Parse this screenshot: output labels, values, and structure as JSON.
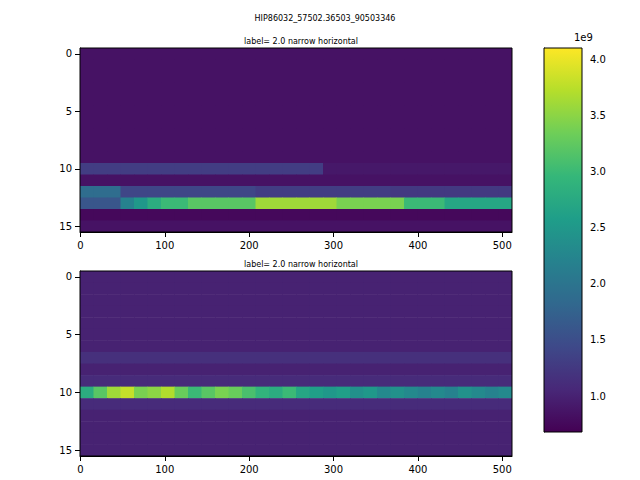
{
  "suptitle": "HIP86032_57502.36503_90503346",
  "colorbar": {
    "range": [
      0.68,
      4.1
    ],
    "ticks": [
      {
        "value": 1,
        "label": "1.0"
      },
      {
        "value": 1.5,
        "label": "1.5"
      },
      {
        "value": 2,
        "label": "2.0"
      },
      {
        "value": 2.5,
        "label": "2.5"
      },
      {
        "value": 3,
        "label": "3.0"
      },
      {
        "value": 3.5,
        "label": "3.5"
      },
      {
        "value": 4,
        "label": "4.0"
      }
    ],
    "offset_text": "1e9"
  },
  "chart_data": [
    {
      "type": "heatmap",
      "title": "label= 2.0 narrow horizontal",
      "xlim": [
        -0.5,
        511.5
      ],
      "xticks": [
        0,
        100,
        200,
        300,
        400,
        500
      ],
      "ylim": [
        15.5,
        -0.5
      ],
      "yticks": [
        0,
        5,
        10,
        15
      ],
      "x_bins": [
        -0.5,
        15.5,
        31.5,
        47.5,
        63.5,
        79.5,
        95.5,
        111.5,
        127.5,
        143.5,
        159.5,
        175.5,
        191.5,
        207.5,
        223.5,
        239.5,
        255.5,
        271.5,
        287.5,
        303.5,
        319.5,
        335.5,
        351.5,
        367.5,
        383.5,
        399.5,
        415.5,
        431.5,
        447.5,
        463.5,
        479.5,
        495.5,
        511.5
      ],
      "cells": [
        [
          0.85,
          0.85,
          0.85,
          0.85,
          0.85,
          0.85,
          0.85,
          0.85,
          0.85,
          0.85,
          0.85,
          0.85,
          0.85,
          0.85,
          0.85,
          0.85,
          0.85,
          0.85,
          0.85,
          0.85,
          0.85,
          0.85,
          0.85,
          0.85,
          0.85,
          0.85,
          0.85,
          0.85,
          0.85,
          0.85,
          0.85,
          0.85
        ],
        [
          0.85,
          0.85,
          0.85,
          0.85,
          0.85,
          0.85,
          0.85,
          0.85,
          0.85,
          0.85,
          0.85,
          0.85,
          0.85,
          0.85,
          0.85,
          0.85,
          0.85,
          0.85,
          0.85,
          0.85,
          0.85,
          0.85,
          0.85,
          0.85,
          0.85,
          0.85,
          0.85,
          0.85,
          0.85,
          0.85,
          0.85,
          0.85
        ],
        [
          0.85,
          0.85,
          0.85,
          0.85,
          0.85,
          0.85,
          0.85,
          0.85,
          0.85,
          0.85,
          0.85,
          0.85,
          0.85,
          0.85,
          0.85,
          0.85,
          0.85,
          0.85,
          0.85,
          0.85,
          0.85,
          0.85,
          0.85,
          0.85,
          0.85,
          0.85,
          0.85,
          0.85,
          0.85,
          0.85,
          0.85,
          0.85
        ],
        [
          0.85,
          0.85,
          0.85,
          0.85,
          0.85,
          0.85,
          0.85,
          0.85,
          0.85,
          0.85,
          0.85,
          0.85,
          0.85,
          0.85,
          0.85,
          0.85,
          0.85,
          0.85,
          0.85,
          0.85,
          0.85,
          0.85,
          0.85,
          0.85,
          0.85,
          0.85,
          0.85,
          0.85,
          0.85,
          0.85,
          0.85,
          0.85
        ],
        [
          0.85,
          0.85,
          0.85,
          0.85,
          0.85,
          0.85,
          0.85,
          0.85,
          0.85,
          0.85,
          0.85,
          0.85,
          0.85,
          0.85,
          0.85,
          0.85,
          0.85,
          0.85,
          0.85,
          0.85,
          0.85,
          0.85,
          0.85,
          0.85,
          0.85,
          0.85,
          0.85,
          0.85,
          0.85,
          0.85,
          0.85,
          0.85
        ],
        [
          0.85,
          0.85,
          0.85,
          0.85,
          0.85,
          0.85,
          0.85,
          0.85,
          0.85,
          0.85,
          0.85,
          0.85,
          0.85,
          0.85,
          0.85,
          0.85,
          0.85,
          0.85,
          0.85,
          0.85,
          0.85,
          0.85,
          0.85,
          0.85,
          0.85,
          0.85,
          0.85,
          0.85,
          0.85,
          0.85,
          0.85,
          0.85
        ],
        [
          0.85,
          0.85,
          0.85,
          0.85,
          0.85,
          0.85,
          0.85,
          0.85,
          0.85,
          0.85,
          0.85,
          0.85,
          0.85,
          0.85,
          0.85,
          0.85,
          0.85,
          0.85,
          0.85,
          0.85,
          0.85,
          0.85,
          0.85,
          0.85,
          0.85,
          0.85,
          0.85,
          0.85,
          0.85,
          0.85,
          0.85,
          0.85
        ],
        [
          0.85,
          0.85,
          0.85,
          0.85,
          0.85,
          0.85,
          0.85,
          0.85,
          0.85,
          0.85,
          0.85,
          0.85,
          0.85,
          0.85,
          0.85,
          0.85,
          0.85,
          0.85,
          0.85,
          0.85,
          0.85,
          0.85,
          0.85,
          0.85,
          0.85,
          0.85,
          0.85,
          0.85,
          0.85,
          0.85,
          0.85,
          0.85
        ],
        [
          0.85,
          0.85,
          0.85,
          0.85,
          0.85,
          0.85,
          0.85,
          0.85,
          0.85,
          0.85,
          0.85,
          0.85,
          0.85,
          0.85,
          0.85,
          0.85,
          0.85,
          0.85,
          0.85,
          0.85,
          0.85,
          0.85,
          0.85,
          0.85,
          0.85,
          0.85,
          0.85,
          0.85,
          0.85,
          0.85,
          0.85,
          0.85
        ],
        [
          0.85,
          0.85,
          0.85,
          0.85,
          0.85,
          0.85,
          0.85,
          0.85,
          0.85,
          0.85,
          0.85,
          0.85,
          0.85,
          0.85,
          0.85,
          0.85,
          0.85,
          0.85,
          0.85,
          0.85,
          0.85,
          0.85,
          0.85,
          0.85,
          0.85,
          0.85,
          0.85,
          0.85,
          0.85,
          0.85,
          0.85,
          0.85
        ],
        [
          1.3,
          1.3,
          1.3,
          1.3,
          1.3,
          1.3,
          1.3,
          1.3,
          1.3,
          1.3,
          1.3,
          1.3,
          1.3,
          1.3,
          1.3,
          1.3,
          1.3,
          1.3,
          0.9,
          0.9,
          0.9,
          0.9,
          0.9,
          0.9,
          0.9,
          0.9,
          0.9,
          0.9,
          0.9,
          0.9,
          0.9,
          0.9
        ],
        [
          0.85,
          0.85,
          0.85,
          0.85,
          0.85,
          0.85,
          0.85,
          0.85,
          0.85,
          0.85,
          0.85,
          0.85,
          0.85,
          0.85,
          0.85,
          0.85,
          0.85,
          0.85,
          0.85,
          0.85,
          0.85,
          0.85,
          0.85,
          0.85,
          0.85,
          0.85,
          0.85,
          0.85,
          0.85,
          0.85,
          0.85,
          0.85
        ],
        [
          1.9,
          1.9,
          1.9,
          1.4,
          1.4,
          1.4,
          1.4,
          1.4,
          1.4,
          1.4,
          1.4,
          1.4,
          1.4,
          1.3,
          1.3,
          1.3,
          1.3,
          1.3,
          1.3,
          1.3,
          1.3,
          1.3,
          1.3,
          1.25,
          1.25,
          1.25,
          1.25,
          1.25,
          1.25,
          1.25,
          1.25,
          1.25
        ],
        [
          1.6,
          1.6,
          1.6,
          2.2,
          2.5,
          2.8,
          3.0,
          3.0,
          3.2,
          3.2,
          3.2,
          3.2,
          3.2,
          3.6,
          3.6,
          3.6,
          3.6,
          3.6,
          3.6,
          3.4,
          3.4,
          3.4,
          3.4,
          3.4,
          3.0,
          3.0,
          3.0,
          2.7,
          2.7,
          2.7,
          2.7,
          2.7
        ],
        [
          0.75,
          0.75,
          0.75,
          0.75,
          0.75,
          0.75,
          0.75,
          0.75,
          0.75,
          0.75,
          0.75,
          0.75,
          0.75,
          0.75,
          0.75,
          0.75,
          0.75,
          0.75,
          0.75,
          0.75,
          0.75,
          0.75,
          0.75,
          0.75,
          0.75,
          0.75,
          0.75,
          0.75,
          0.75,
          0.75,
          0.75,
          0.75
        ],
        [
          0.85,
          0.85,
          0.85,
          0.85,
          0.85,
          0.85,
          0.85,
          0.85,
          0.85,
          0.85,
          0.85,
          0.85,
          0.85,
          0.85,
          0.85,
          0.85,
          0.85,
          0.85,
          0.85,
          0.85,
          0.85,
          0.85,
          0.85,
          0.85,
          0.85,
          0.85,
          0.85,
          0.85,
          0.85,
          0.85,
          0.85,
          0.85
        ]
      ]
    },
    {
      "type": "heatmap",
      "title": "label= 2.0 narrow horizontal",
      "xlim": [
        -0.5,
        511.5
      ],
      "xticks": [
        0,
        100,
        200,
        300,
        400,
        500
      ],
      "ylim": [
        15.5,
        -0.5
      ],
      "yticks": [
        0,
        5,
        10,
        15
      ],
      "x_bins": [
        -0.5,
        15.5,
        31.5,
        47.5,
        63.5,
        79.5,
        95.5,
        111.5,
        127.5,
        143.5,
        159.5,
        175.5,
        191.5,
        207.5,
        223.5,
        239.5,
        255.5,
        271.5,
        287.5,
        303.5,
        319.5,
        335.5,
        351.5,
        367.5,
        383.5,
        399.5,
        415.5,
        431.5,
        447.5,
        463.5,
        479.5,
        495.5,
        511.5
      ],
      "cells": [
        [
          1.0,
          1.0,
          1.0,
          1.0,
          1.0,
          1.0,
          1.0,
          1.0,
          1.0,
          1.0,
          1.0,
          1.0,
          1.0,
          1.0,
          1.0,
          1.0,
          1.0,
          1.0,
          1.0,
          1.0,
          1.0,
          1.0,
          1.0,
          1.0,
          1.0,
          1.0,
          1.0,
          1.0,
          1.0,
          1.0,
          1.0,
          1.0
        ],
        [
          1.0,
          1.0,
          1.0,
          1.0,
          1.0,
          1.0,
          1.0,
          1.0,
          1.0,
          1.0,
          1.0,
          1.0,
          1.0,
          1.0,
          1.0,
          1.0,
          1.0,
          1.0,
          1.0,
          1.0,
          1.0,
          1.0,
          1.0,
          1.0,
          1.0,
          1.0,
          1.0,
          1.0,
          1.0,
          1.0,
          1.0,
          1.0
        ],
        [
          1.0,
          1.0,
          1.0,
          1.0,
          1.0,
          1.0,
          1.0,
          1.0,
          1.0,
          1.0,
          1.0,
          1.0,
          1.0,
          1.0,
          1.0,
          1.0,
          1.0,
          1.0,
          1.0,
          1.0,
          1.0,
          1.0,
          1.0,
          1.0,
          1.0,
          1.0,
          1.0,
          1.0,
          1.0,
          1.0,
          1.0,
          1.0
        ],
        [
          1.0,
          1.0,
          1.0,
          1.0,
          1.0,
          1.0,
          1.0,
          1.0,
          1.0,
          1.0,
          1.0,
          1.0,
          1.0,
          1.0,
          1.0,
          1.0,
          1.0,
          1.0,
          1.0,
          1.0,
          1.0,
          1.0,
          1.0,
          1.0,
          1.0,
          1.0,
          1.0,
          1.0,
          1.0,
          1.0,
          1.0,
          1.0
        ],
        [
          1.0,
          1.0,
          1.0,
          1.0,
          1.0,
          1.0,
          1.0,
          1.0,
          1.0,
          1.0,
          1.0,
          1.0,
          1.0,
          1.0,
          1.0,
          1.0,
          1.0,
          1.0,
          1.0,
          1.0,
          1.0,
          1.0,
          1.0,
          1.0,
          1.0,
          1.0,
          1.0,
          1.0,
          1.0,
          1.0,
          1.0,
          1.0
        ],
        [
          1.0,
          1.0,
          1.0,
          1.0,
          1.0,
          1.0,
          1.0,
          1.0,
          1.0,
          1.0,
          1.0,
          1.0,
          1.0,
          1.0,
          1.0,
          1.0,
          1.0,
          1.0,
          1.0,
          1.0,
          1.0,
          1.0,
          1.0,
          1.0,
          1.0,
          1.0,
          1.0,
          1.0,
          1.0,
          1.0,
          1.0,
          1.0
        ],
        [
          1.0,
          1.0,
          1.0,
          1.0,
          1.0,
          1.0,
          1.0,
          1.0,
          1.0,
          1.0,
          1.0,
          1.0,
          1.0,
          1.0,
          1.0,
          1.0,
          1.0,
          1.0,
          1.0,
          1.0,
          1.0,
          1.0,
          1.0,
          1.0,
          1.0,
          1.0,
          1.0,
          1.0,
          1.0,
          1.0,
          1.0,
          1.0
        ],
        [
          1.15,
          1.15,
          1.15,
          1.15,
          1.15,
          1.15,
          1.15,
          1.15,
          1.15,
          1.15,
          1.15,
          1.15,
          1.15,
          1.15,
          1.15,
          1.15,
          1.15,
          1.15,
          1.15,
          1.15,
          1.15,
          1.15,
          1.15,
          1.15,
          1.15,
          1.15,
          1.15,
          1.15,
          1.15,
          1.15,
          1.15,
          1.15
        ],
        [
          1.0,
          1.0,
          1.0,
          1.0,
          1.0,
          1.0,
          1.0,
          1.0,
          1.0,
          1.0,
          1.0,
          1.0,
          1.0,
          1.0,
          1.0,
          1.0,
          1.0,
          1.0,
          1.0,
          1.0,
          1.0,
          1.0,
          1.0,
          1.0,
          1.0,
          1.0,
          1.0,
          1.0,
          1.0,
          1.0,
          1.0,
          1.0
        ],
        [
          1.1,
          1.1,
          1.1,
          1.1,
          1.1,
          1.1,
          1.1,
          1.1,
          1.1,
          1.1,
          1.1,
          1.1,
          1.1,
          1.1,
          1.1,
          1.1,
          1.1,
          1.1,
          1.1,
          1.1,
          1.1,
          1.1,
          1.1,
          1.1,
          1.1,
          1.1,
          1.1,
          1.1,
          1.1,
          1.1,
          1.1,
          1.1
        ],
        [
          2.8,
          3.2,
          3.6,
          3.8,
          3.4,
          3.5,
          3.7,
          3.3,
          3.0,
          3.2,
          3.4,
          3.3,
          3.1,
          2.9,
          2.8,
          3.0,
          2.7,
          2.6,
          2.5,
          2.6,
          2.4,
          2.5,
          2.3,
          2.4,
          2.3,
          2.2,
          2.3,
          2.2,
          2.4,
          2.3,
          2.2,
          2.3
        ],
        [
          1.1,
          1.1,
          1.1,
          1.1,
          1.1,
          1.1,
          1.1,
          1.1,
          1.1,
          1.1,
          1.1,
          1.1,
          1.1,
          1.1,
          1.1,
          1.1,
          1.1,
          1.1,
          1.1,
          1.1,
          1.1,
          1.1,
          1.1,
          1.1,
          1.1,
          1.1,
          1.1,
          1.1,
          1.1,
          1.1,
          1.1,
          1.1
        ],
        [
          1.0,
          1.0,
          1.0,
          1.0,
          1.0,
          1.0,
          1.0,
          1.0,
          1.0,
          1.0,
          1.0,
          1.0,
          1.0,
          1.0,
          1.0,
          1.0,
          1.0,
          1.0,
          1.0,
          1.0,
          1.0,
          1.0,
          1.0,
          1.0,
          1.0,
          1.0,
          1.0,
          1.0,
          1.0,
          1.0,
          1.0,
          1.0
        ],
        [
          1.0,
          1.0,
          1.0,
          1.0,
          1.0,
          1.0,
          1.0,
          1.0,
          1.0,
          1.0,
          1.0,
          1.0,
          1.0,
          1.0,
          1.0,
          1.0,
          1.0,
          1.0,
          1.0,
          1.0,
          1.0,
          1.0,
          1.0,
          1.0,
          1.0,
          1.0,
          1.0,
          1.0,
          1.0,
          1.0,
          1.0,
          1.0
        ],
        [
          1.0,
          1.0,
          1.0,
          1.0,
          1.0,
          1.0,
          1.0,
          1.0,
          1.0,
          1.0,
          1.0,
          1.0,
          1.0,
          1.0,
          1.0,
          1.0,
          1.0,
          1.0,
          1.0,
          1.0,
          1.0,
          1.0,
          1.0,
          1.0,
          1.0,
          1.0,
          1.0,
          1.0,
          1.0,
          1.0,
          1.0,
          1.0
        ],
        [
          1.0,
          1.0,
          1.0,
          1.0,
          1.0,
          1.0,
          1.0,
          1.0,
          1.0,
          1.0,
          1.0,
          1.0,
          1.0,
          1.0,
          1.0,
          1.0,
          1.0,
          1.0,
          1.0,
          1.0,
          1.0,
          1.0,
          1.0,
          1.0,
          1.0,
          1.0,
          1.0,
          1.0,
          1.0,
          1.0,
          1.0,
          1.0
        ]
      ]
    }
  ]
}
